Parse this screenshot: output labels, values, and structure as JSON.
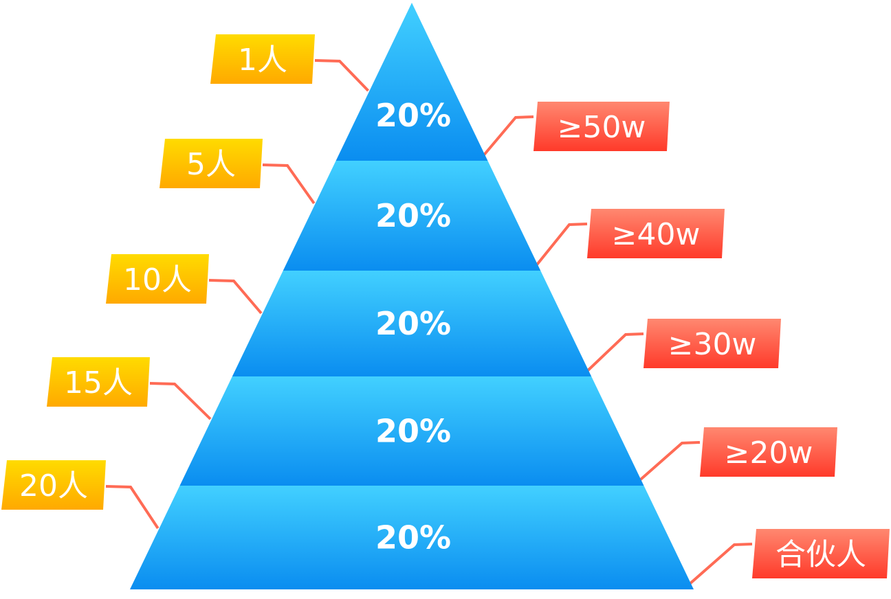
{
  "tiers": [
    {
      "percent": "20%",
      "people": "1人",
      "threshold": "≥50w"
    },
    {
      "percent": "20%",
      "people": "5人",
      "threshold": "≥40w"
    },
    {
      "percent": "20%",
      "people": "10人",
      "threshold": "≥30w"
    },
    {
      "percent": "20%",
      "people": "15人",
      "threshold": "≥20w"
    },
    {
      "percent": "20%",
      "people": "20人",
      "threshold": "合伙人"
    }
  ],
  "colors": {
    "tier_top": "#42d0ff",
    "tier_bottom": "#0a8df0",
    "left_tag_top": "#ffdb00",
    "left_tag_bottom": "#ffa900",
    "right_tag_top": "#ff8870",
    "right_tag_bottom": "#ff3a2a",
    "connector": "#ff6b55"
  }
}
